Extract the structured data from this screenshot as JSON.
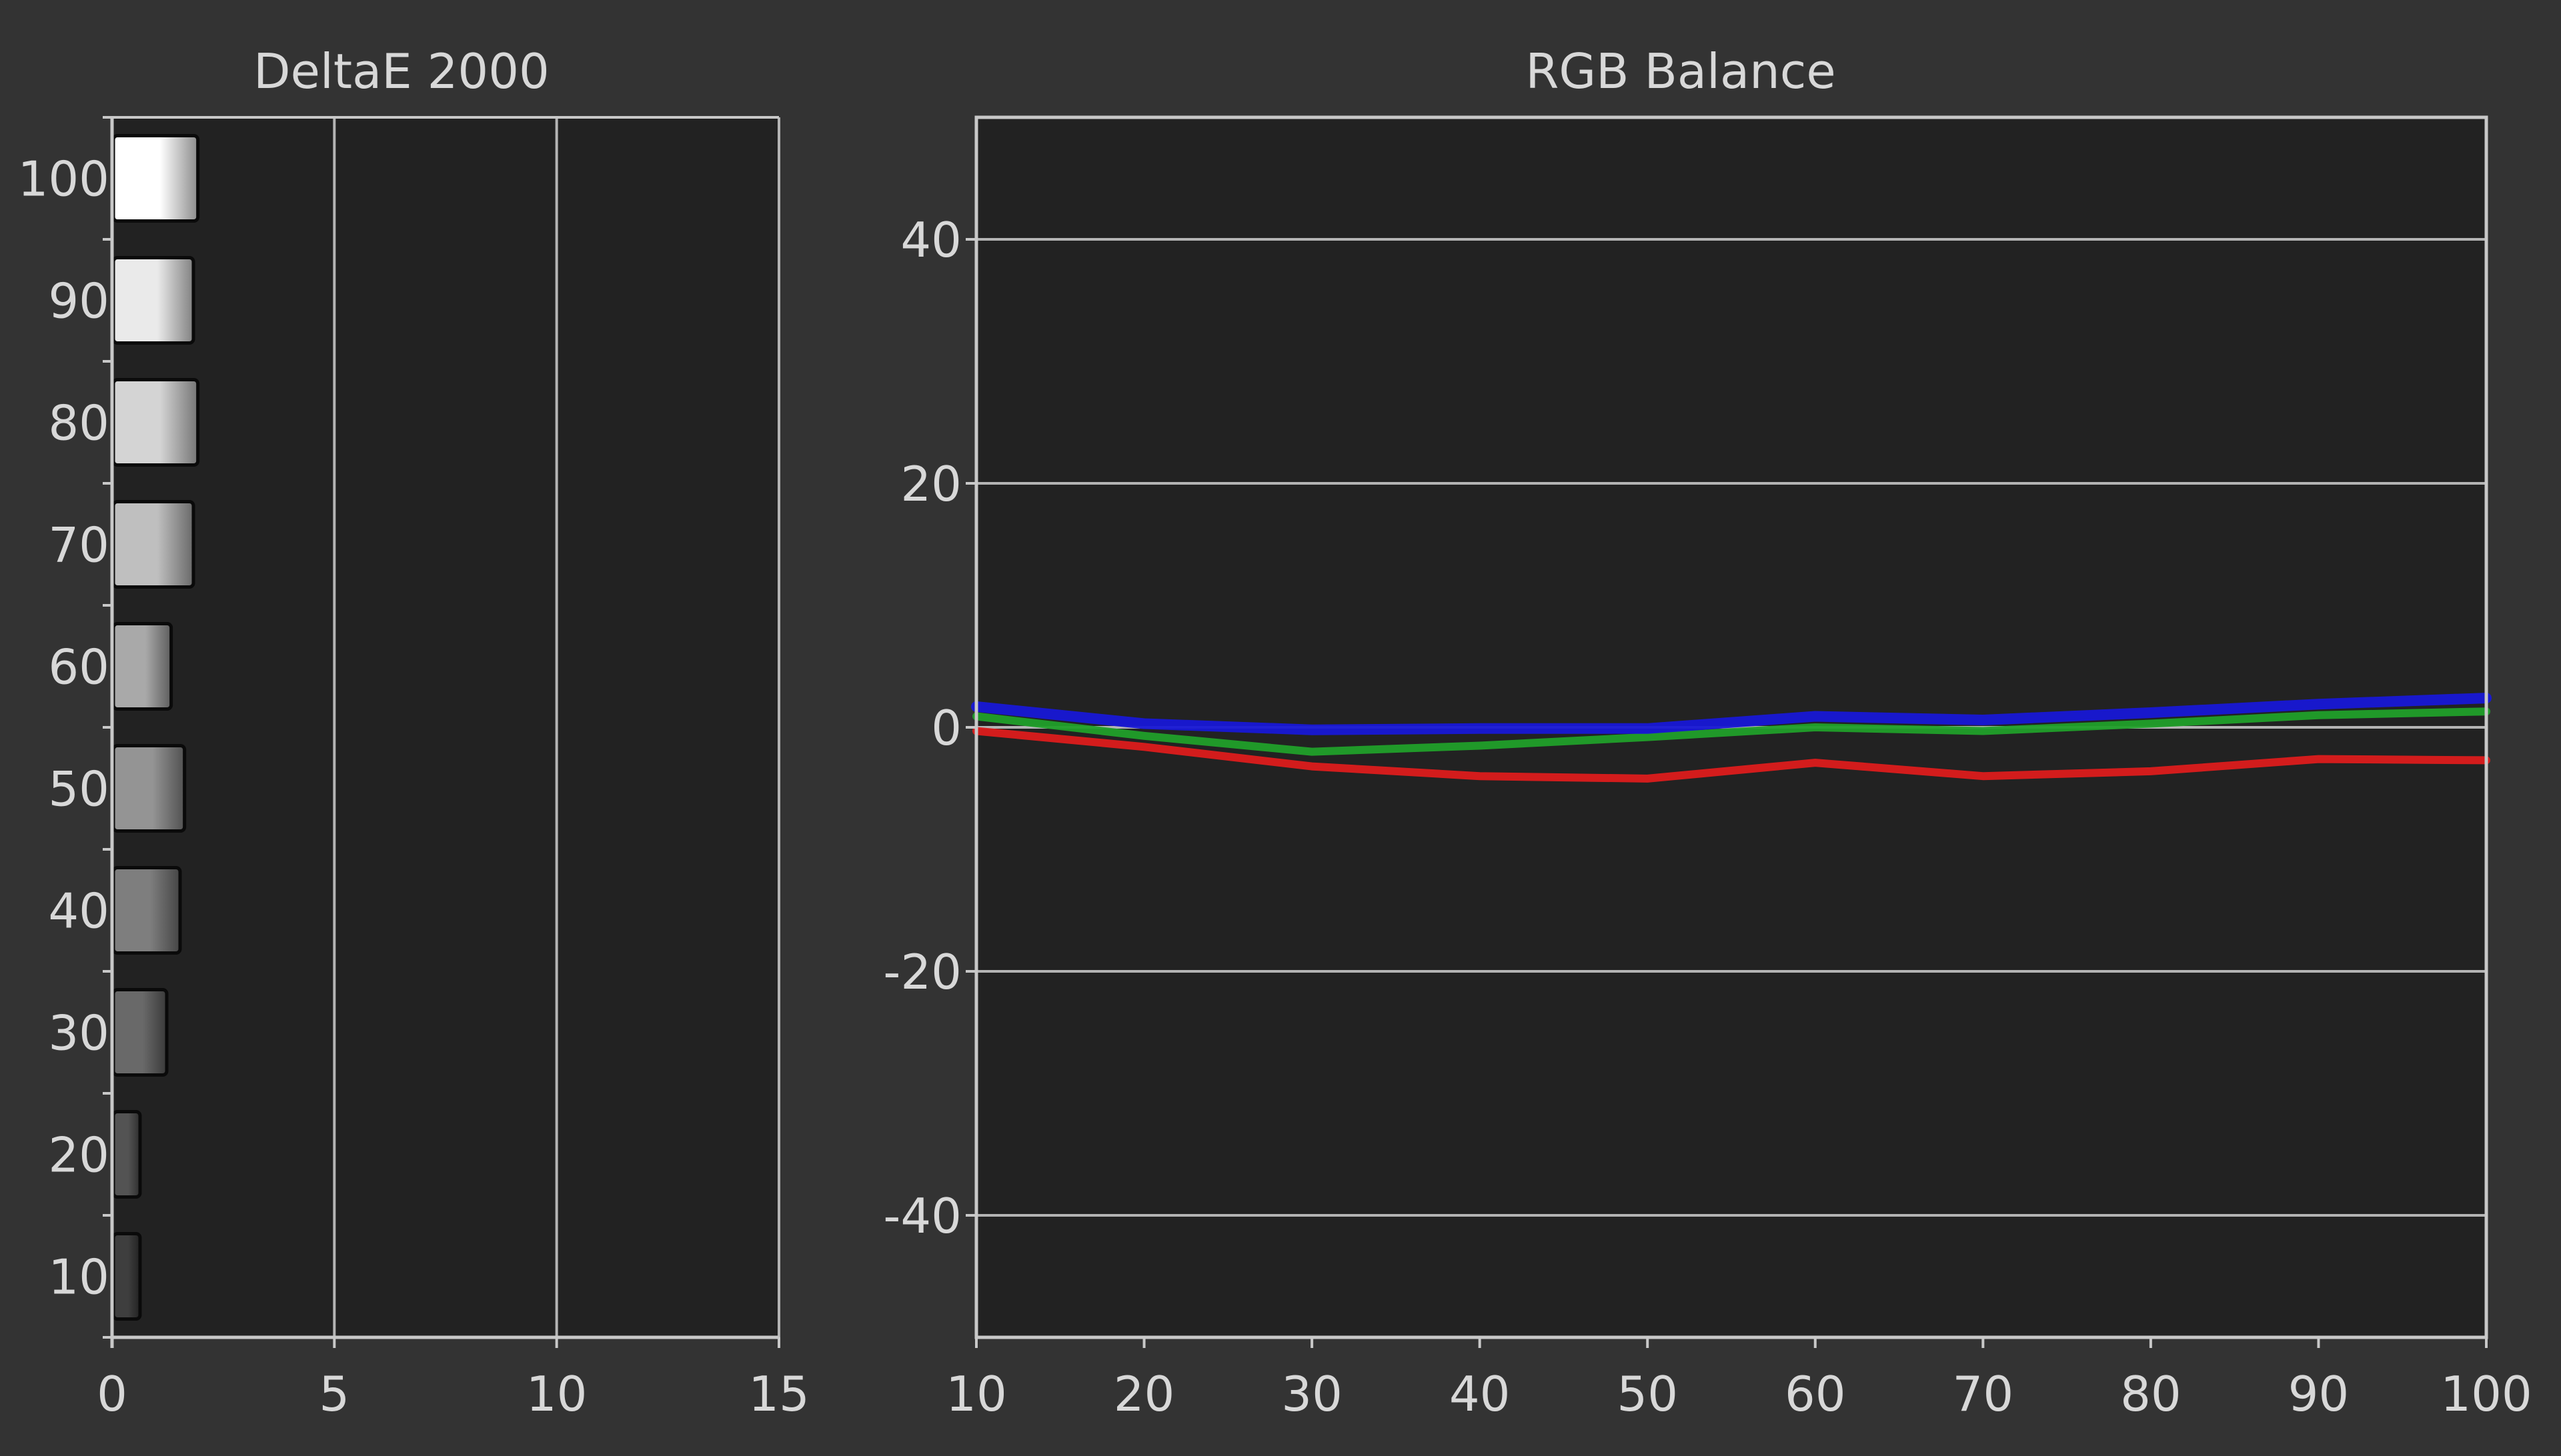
{
  "chart_data": [
    {
      "type": "bar",
      "orientation": "horizontal",
      "title": "DeltaE 2000",
      "categories": [
        "100",
        "90",
        "80",
        "70",
        "60",
        "50",
        "40",
        "30",
        "20",
        "10"
      ],
      "values": [
        1.9,
        1.8,
        1.9,
        1.8,
        1.3,
        1.6,
        1.5,
        1.2,
        0.6,
        0.6
      ],
      "x_ticks": [
        "0",
        "5",
        "10",
        "15"
      ],
      "xlim": [
        0,
        15
      ],
      "grid": true
    },
    {
      "type": "line",
      "title": "RGB Balance",
      "x": [
        10,
        20,
        30,
        40,
        50,
        60,
        70,
        80,
        90,
        100
      ],
      "x_ticks": [
        "10",
        "20",
        "30",
        "40",
        "50",
        "60",
        "70",
        "80",
        "90",
        "100"
      ],
      "y_ticks": [
        "40",
        "20",
        "0",
        "-20",
        "-40"
      ],
      "ylim": [
        -50,
        50
      ],
      "grid": true,
      "series": [
        {
          "color": "#dd1c1c",
          "values": [
            -0.3,
            -1.6,
            -3.2,
            -4.0,
            -4.2,
            -2.9,
            -4.0,
            -3.6,
            -2.6,
            -2.7
          ]
        },
        {
          "color": "#21a02a",
          "values": [
            0.9,
            -0.7,
            -2.0,
            -1.5,
            -0.8,
            0.0,
            -0.3,
            0.3,
            1.0,
            1.3
          ]
        },
        {
          "color": "#1818d6",
          "values": [
            1.7,
            0.3,
            -0.2,
            -0.1,
            -0.1,
            0.9,
            0.6,
            1.2,
            1.9,
            2.4
          ]
        }
      ]
    }
  ]
}
